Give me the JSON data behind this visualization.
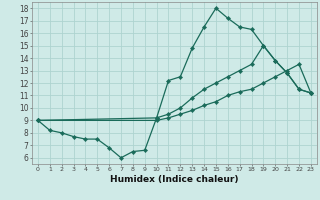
{
  "xlabel": "Humidex (Indice chaleur)",
  "background_color": "#cfeae7",
  "grid_color": "#aed4d0",
  "line_color": "#1a6b5a",
  "xlim": [
    -0.5,
    23.5
  ],
  "ylim": [
    5.5,
    18.5
  ],
  "xticks": [
    0,
    1,
    2,
    3,
    4,
    5,
    6,
    7,
    8,
    9,
    10,
    11,
    12,
    13,
    14,
    15,
    16,
    17,
    18,
    19,
    20,
    21,
    22,
    23
  ],
  "yticks": [
    6,
    7,
    8,
    9,
    10,
    11,
    12,
    13,
    14,
    15,
    16,
    17,
    18
  ],
  "lines": [
    {
      "x": [
        0,
        1,
        2,
        3,
        4,
        5,
        6,
        7,
        8,
        9,
        10,
        11,
        12,
        13,
        14,
        15,
        16,
        17,
        18,
        19,
        20,
        21,
        22,
        23
      ],
      "y": [
        9.0,
        8.2,
        8.0,
        7.7,
        7.5,
        7.5,
        6.8,
        6.0,
        6.5,
        6.6,
        9.2,
        12.2,
        12.5,
        14.8,
        16.5,
        18.0,
        17.2,
        16.5,
        16.3,
        15.0,
        13.8,
        12.8,
        11.5,
        11.2
      ]
    },
    {
      "x": [
        0,
        10,
        11,
        12,
        13,
        14,
        15,
        16,
        17,
        18,
        19,
        20,
        21,
        22,
        23
      ],
      "y": [
        9.0,
        9.2,
        9.5,
        10.0,
        10.8,
        11.5,
        12.0,
        12.5,
        13.0,
        13.5,
        15.0,
        13.8,
        12.8,
        11.5,
        11.2
      ]
    },
    {
      "x": [
        0,
        10,
        11,
        12,
        13,
        14,
        15,
        16,
        17,
        18,
        19,
        20,
        21,
        22,
        23
      ],
      "y": [
        9.0,
        9.0,
        9.2,
        9.5,
        9.8,
        10.2,
        10.5,
        11.0,
        11.3,
        11.5,
        12.0,
        12.5,
        13.0,
        13.5,
        11.2
      ]
    }
  ]
}
